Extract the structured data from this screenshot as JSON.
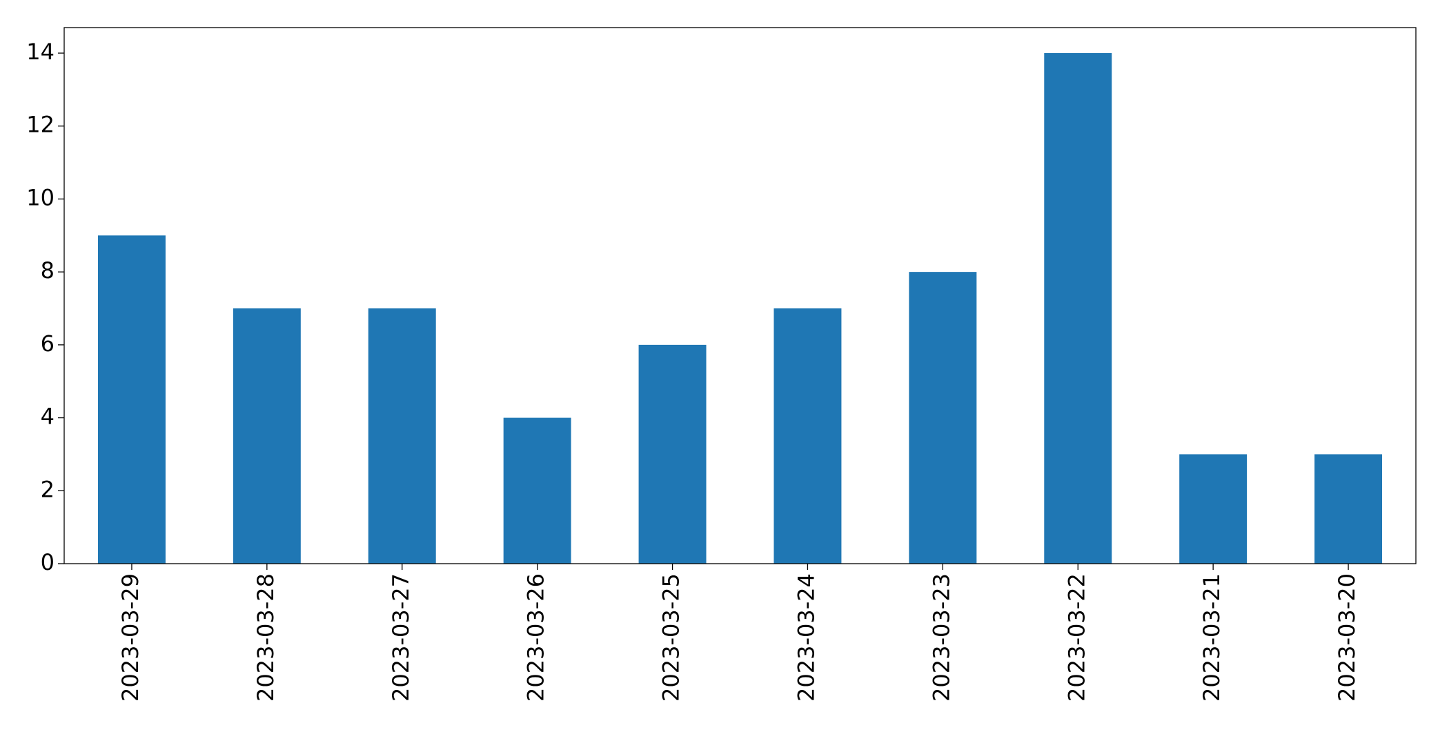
{
  "chart_data": {
    "type": "bar",
    "categories": [
      "2023-03-29",
      "2023-03-28",
      "2023-03-27",
      "2023-03-26",
      "2023-03-25",
      "2023-03-24",
      "2023-03-23",
      "2023-03-22",
      "2023-03-21",
      "2023-03-20"
    ],
    "values": [
      9,
      7,
      7,
      4,
      6,
      7,
      8,
      14,
      3,
      3
    ],
    "color": "#1f77b4",
    "ylim": [
      0,
      14.7
    ],
    "yticks": [
      0,
      2,
      4,
      6,
      8,
      10,
      12,
      14
    ],
    "grid": false
  }
}
